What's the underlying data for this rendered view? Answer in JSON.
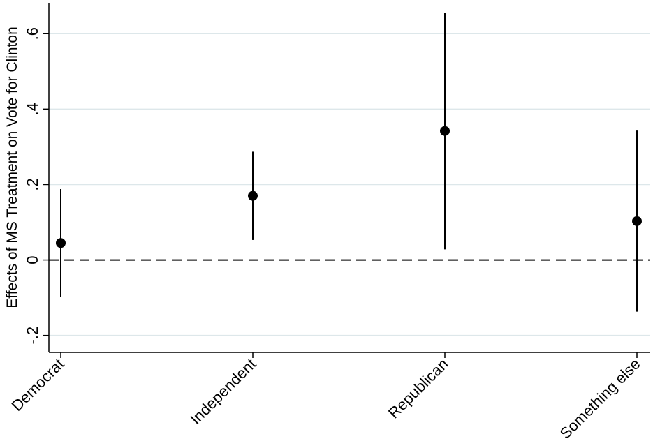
{
  "chart_data": {
    "type": "scatter",
    "title": "",
    "xlabel": "",
    "ylabel": "Effects of MS Treatment on Vote for Clinton",
    "categories": [
      "Democrat",
      "Independent",
      "Republican",
      "Something else"
    ],
    "points": [
      {
        "category": "Democrat",
        "estimate": 0.045,
        "ci_low": -0.098,
        "ci_high": 0.188
      },
      {
        "category": "Independent",
        "estimate": 0.17,
        "ci_low": 0.053,
        "ci_high": 0.287
      },
      {
        "category": "Republican",
        "estimate": 0.342,
        "ci_low": 0.028,
        "ci_high": 0.656
      },
      {
        "category": "Something else",
        "estimate": 0.103,
        "ci_low": -0.137,
        "ci_high": 0.343
      }
    ],
    "yticks": [
      -0.2,
      0,
      0.2,
      0.4,
      0.6
    ],
    "ytick_labels": [
      "-.2",
      "0",
      ".2",
      ".4",
      ".6"
    ],
    "ylim": [
      -0.245,
      0.68
    ],
    "reference_line": {
      "y": 0,
      "style": "dashed"
    },
    "grid": true,
    "legend": "none",
    "colors": {
      "marker": "#000000",
      "grid": "#dde7ea",
      "axis": "#000000"
    }
  }
}
